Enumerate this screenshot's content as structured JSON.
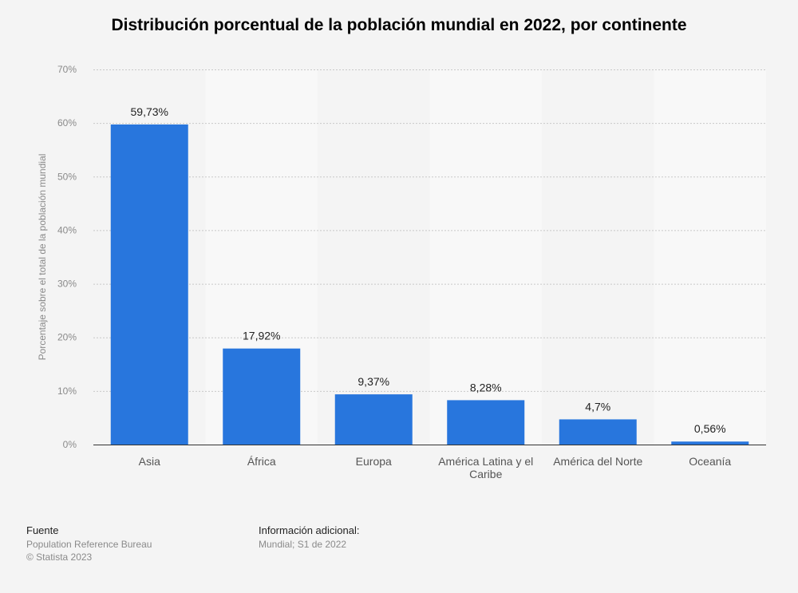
{
  "chart_data": {
    "type": "bar",
    "title": "Distribución porcentual de la población mundial en 2022, por continente",
    "ylabel": "Porcentaje sobre el total de la población mundial",
    "xlabel": "",
    "ylim": [
      0,
      70
    ],
    "yticks": [
      "0%",
      "10%",
      "20%",
      "30%",
      "40%",
      "50%",
      "60%",
      "70%"
    ],
    "categories": [
      "Asia",
      "África",
      "Europa",
      "América Latina y el Caribe",
      "América del Norte",
      "Oceanía"
    ],
    "values": [
      59.73,
      17.92,
      9.37,
      8.28,
      4.7,
      0.56
    ],
    "data_labels": [
      "59,73%",
      "17,92%",
      "9,37%",
      "8,28%",
      "4,7%",
      "0,56%"
    ],
    "bar_color": "#2876dd",
    "grid": true
  },
  "footer": {
    "source_title": "Fuente",
    "source_line1": "Population Reference Bureau",
    "source_line2": "© Statista 2023",
    "info_title": "Información adicional:",
    "info_line1": "Mundial; S1 de 2022"
  }
}
